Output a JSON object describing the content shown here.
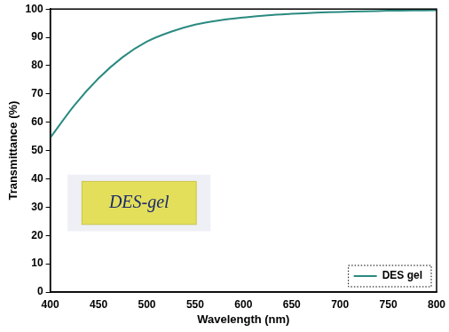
{
  "chart_data": {
    "type": "line",
    "x_label": "Wavelength (nm)",
    "y_label": "Transmittance (%)",
    "x": [
      400,
      425,
      450,
      475,
      500,
      525,
      550,
      575,
      600,
      625,
      650,
      675,
      700,
      725,
      750,
      775,
      800
    ],
    "series": [
      {
        "name": "DES gel",
        "color": "#2a8a80",
        "values": [
          54.5,
          66,
          75.5,
          83,
          88.5,
          92,
          94.5,
          96,
          97,
          97.8,
          98.3,
          98.7,
          99,
          99.2,
          99.4,
          99.5,
          99.6
        ]
      }
    ],
    "xlim": [
      400,
      800
    ],
    "xticks": [
      400,
      450,
      500,
      550,
      600,
      650,
      700,
      750,
      800
    ],
    "ylim": [
      0,
      100
    ],
    "yticks": [
      0,
      10,
      20,
      30,
      40,
      50,
      60,
      70,
      80,
      90,
      100
    ],
    "grid": false,
    "legend": "lower right",
    "annotations": [
      {
        "text": "DES-gel"
      }
    ]
  }
}
